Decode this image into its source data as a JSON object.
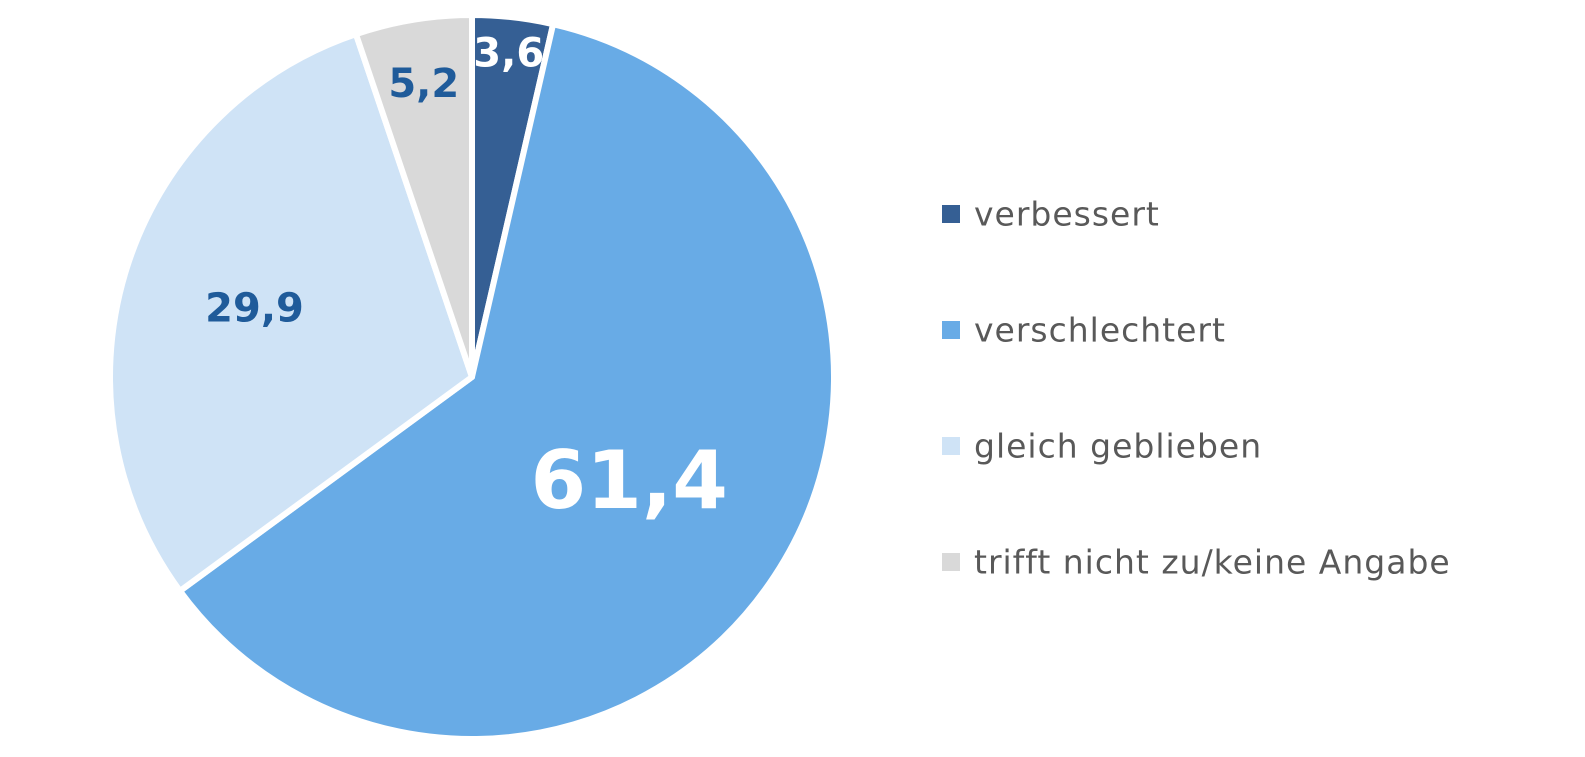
{
  "chart_data": {
    "type": "pie",
    "title": "",
    "start_angle_deg": 0,
    "direction": "clockwise",
    "legend_position": "right",
    "slices": [
      {
        "label": "verbessert",
        "value": 3.6,
        "display": "3,6",
        "color": "#355f94",
        "label_color": "#ffffff"
      },
      {
        "label": "verschlechtert",
        "value": 61.4,
        "display": "61,4",
        "color": "#68abe6",
        "label_color": "#ffffff"
      },
      {
        "label": "gleich geblieben",
        "value": 29.9,
        "display": "29,9",
        "color": "#cfe3f6",
        "label_color": "#1f5b9a"
      },
      {
        "label": "trifft nicht zu/keine Angabe",
        "value": 5.2,
        "display": "5,2",
        "color": "#d9d9d9",
        "label_color": "#1f5b9a"
      }
    ]
  }
}
